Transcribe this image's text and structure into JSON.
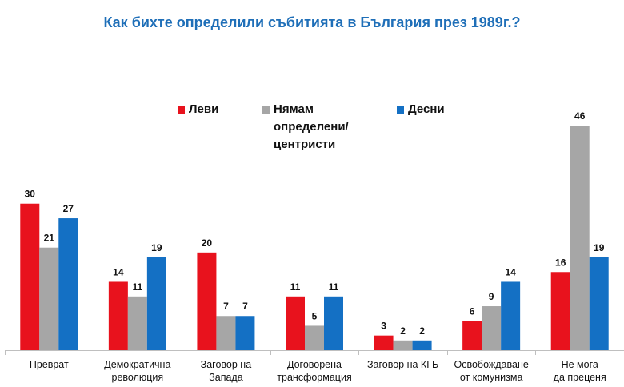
{
  "chart_data": {
    "type": "bar",
    "title": "Как бихте определили събитията в България през 1989г.?",
    "categories": [
      [
        "Преврат"
      ],
      [
        "Демократична",
        "революция"
      ],
      [
        "Заговор на",
        "Запада"
      ],
      [
        "Договорена",
        "трансформация"
      ],
      [
        "Заговор на КГБ"
      ],
      [
        "Освобождаване",
        "от комунизма"
      ],
      [
        "Не мога",
        "да преценя"
      ]
    ],
    "series": [
      {
        "name": "Леви",
        "color": "#e8121d",
        "values": [
          30,
          14,
          20,
          11,
          3,
          6,
          16
        ]
      },
      {
        "name": "Нямам определени/ центристи",
        "color": "#a6a6a6",
        "values": [
          21,
          11,
          7,
          5,
          2,
          9,
          46
        ]
      },
      {
        "name": "Десни",
        "color": "#1470c4",
        "values": [
          27,
          19,
          7,
          11,
          2,
          14,
          19
        ]
      }
    ],
    "legend": {
      "position": "top",
      "items": [
        {
          "lines": [
            "Леви"
          ]
        },
        {
          "lines": [
            "Нямам",
            "определени/",
            "центристи"
          ]
        },
        {
          "lines": [
            "Десни"
          ]
        }
      ]
    },
    "ylim": [
      0,
      46
    ],
    "grid": false,
    "xlabel": "",
    "ylabel": ""
  }
}
